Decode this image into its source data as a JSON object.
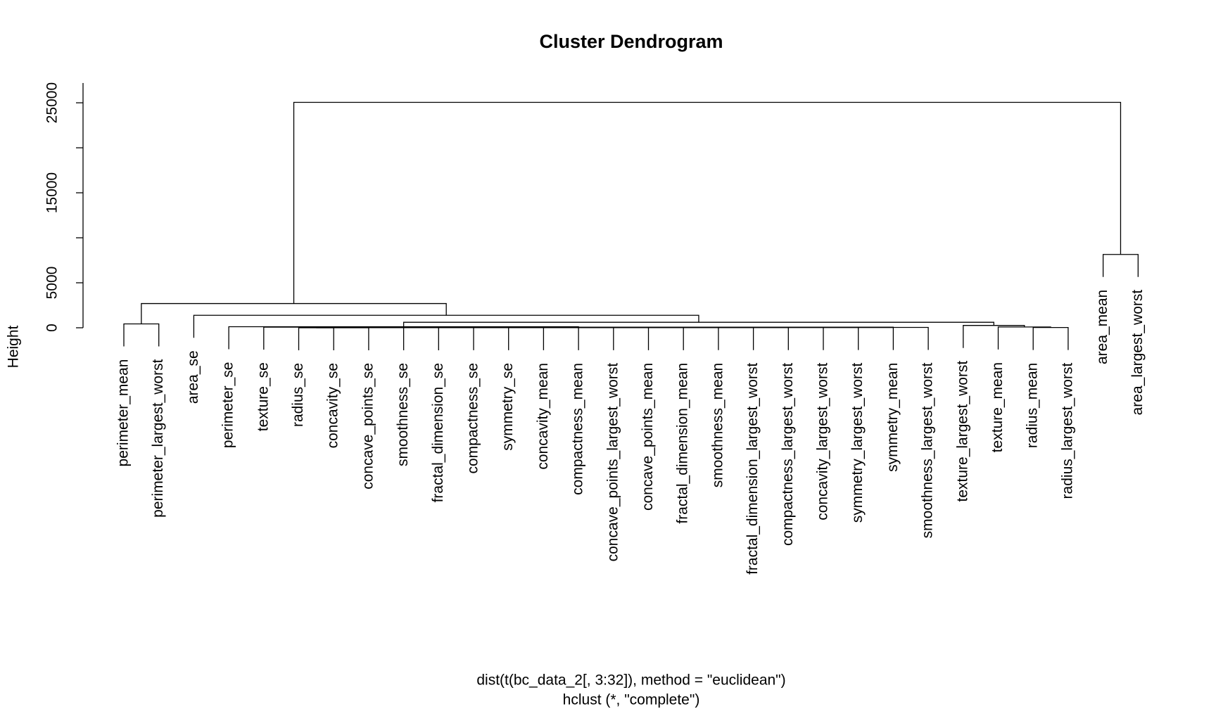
{
  "chart_data": {
    "type": "dendrogram",
    "title": "Cluster Dendrogram",
    "y_label": "Height",
    "x_label": "dist(t(bc_data_2[, 3:32]), method = \"euclidean\")",
    "subtitle": "hclust (*, \"complete\")",
    "leaves": [
      "perimeter_mean",
      "perimeter_largest_worst",
      "area_se",
      "perimeter_se",
      "texture_se",
      "radius_se",
      "concavity_se",
      "concave_points_se",
      "smoothness_se",
      "fractal_dimension_se",
      "compactness_se",
      "symmetry_se",
      "concavity_mean",
      "compactness_mean",
      "concave_points_largest_worst",
      "concave_points_mean",
      "fractal_dimension_mean",
      "smoothness_mean",
      "fractal_dimension_largest_worst",
      "compactness_largest_worst",
      "concavity_largest_worst",
      "symmetry_largest_worst",
      "symmetry_mean",
      "smoothness_largest_worst",
      "texture_largest_worst",
      "texture_mean",
      "radius_mean",
      "radius_largest_worst",
      "area_mean",
      "area_largest_worst"
    ],
    "merge": [
      [
        -6,
        -7
      ],
      [
        1,
        -8
      ],
      [
        2,
        -9
      ],
      [
        3,
        -10
      ],
      [
        4,
        -11
      ],
      [
        5,
        -12
      ],
      [
        6,
        -13
      ],
      [
        7,
        -14
      ],
      [
        8,
        -15
      ],
      [
        9,
        -16
      ],
      [
        10,
        -17
      ],
      [
        11,
        -18
      ],
      [
        12,
        -19
      ],
      [
        13,
        -20
      ],
      [
        14,
        -21
      ],
      [
        15,
        -22
      ],
      [
        16,
        -23
      ],
      [
        17,
        -24
      ],
      [
        -5,
        18
      ],
      [
        -4,
        19
      ],
      [
        -27,
        -28
      ],
      [
        -26,
        21
      ],
      [
        -25,
        22
      ],
      [
        20,
        23
      ],
      [
        -3,
        24
      ],
      [
        -1,
        -2
      ],
      [
        26,
        25
      ],
      [
        -29,
        -30
      ],
      [
        27,
        28
      ]
    ],
    "heights": [
      5,
      6,
      7,
      8,
      9,
      10,
      11,
      12,
      14,
      16,
      18,
      20,
      22,
      25,
      28,
      31,
      35,
      40,
      70,
      120,
      30,
      90,
      260,
      610,
      1390,
      430,
      2690,
      8150,
      25050
    ],
    "hang": 0.1,
    "ylim": [
      0,
      27200
    ],
    "yticks": [
      0,
      5000,
      15000,
      25000
    ],
    "minor_yticks": [
      10000,
      20000
    ],
    "color": "#000000"
  }
}
